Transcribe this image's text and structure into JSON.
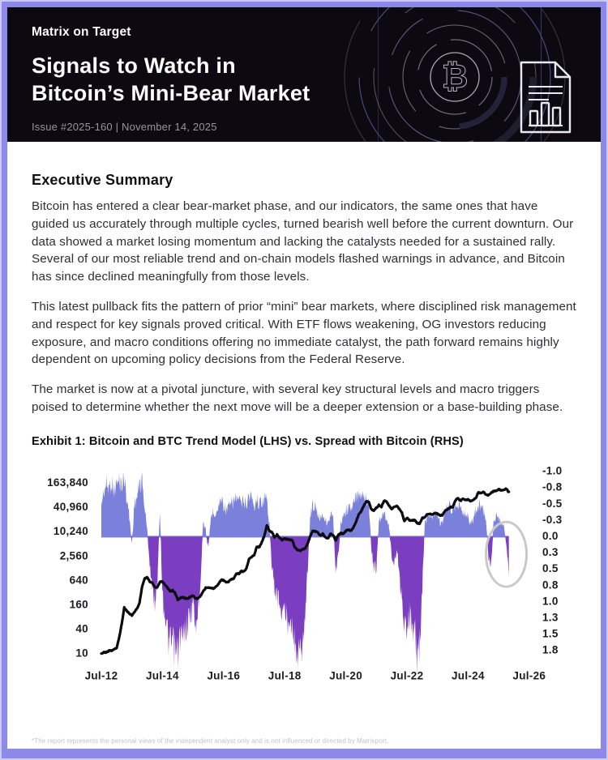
{
  "header": {
    "brand": "Matrix on Target",
    "title_line1": "Signals to Watch in",
    "title_line2": "Bitcoin’s Mini-Bear Market",
    "issue_line": "Issue #2025-160 | November 14, 2025",
    "icons": [
      "bitcoin-target-maze-icon",
      "report-document-chart-icon"
    ]
  },
  "summary": {
    "heading": "Executive Summary",
    "paragraphs": [
      "Bitcoin has entered a clear bear-market phase, and our indicators, the same ones that have guided us accurately through multiple cycles, turned bearish well before the current downturn. Our data showed a market losing momentum and lacking the catalysts needed for a sustained rally. Several of our most reliable trend and on-chain models flashed warnings in advance, and Bitcoin has since declined meaningfully from those levels.",
      "This latest pullback fits the pattern of prior “mini” bear markets, where disciplined risk management and respect for key signals proved critical. With ETF flows weakening, OG investors reducing exposure, and macro conditions offering no immediate catalyst, the path forward remains highly dependent on upcoming policy decisions from the Federal Reserve.",
      "The market is now at a pivotal juncture, with several key structural levels and macro triggers poised to determine whether the next move will be a deeper extension or a base-building phase."
    ]
  },
  "exhibit": {
    "title": "Exhibit 1: Bitcoin and BTC Trend Model (LHS) vs. Spread with Bitcoin (RHS)"
  },
  "footnote": "*The report represents the personal views of the independent analyst only and is not influenced or directed by Matrixport.",
  "colors": {
    "page_border": "#8d89e9",
    "header_bg": "#0c0a10",
    "spread_negative_fill": "#7b80da",
    "spread_positive_fill": "#7b3ec1",
    "price_line": "#0b0b10",
    "annotation_circle": "#c9c9c9",
    "tick_text": "#1b1b22"
  },
  "chart_data": {
    "type": "line+area",
    "title": "Exhibit 1: Bitcoin and BTC Trend Model (LHS) vs. Spread with Bitcoin (RHS)",
    "x_start_month": "2012-07",
    "x_step_months": 1,
    "x_tick_labels": [
      "Jul-12",
      "Jul-14",
      "Jul-16",
      "Jul-18",
      "Jul-20",
      "Jul-22",
      "Jul-24",
      "Jul-26"
    ],
    "x_tick_month_index": [
      0,
      24,
      48,
      72,
      96,
      120,
      144,
      168
    ],
    "lhs_axis": {
      "scale": "log4",
      "tick_values": [
        163840,
        40960,
        10240,
        2560,
        640,
        160,
        40,
        10
      ],
      "tick_labels": [
        "163,840",
        "40,960",
        "10,240",
        "2,560",
        "640",
        "160",
        "40",
        "10"
      ]
    },
    "rhs_axis": {
      "scale": "linear-inverted",
      "tick_values": [
        -1.0,
        -0.75,
        -0.5,
        -0.25,
        0.0,
        0.25,
        0.5,
        0.75,
        1.0,
        1.25,
        1.5,
        1.75
      ],
      "tick_labels": [
        "-1.0",
        "-0.8",
        "-0.5",
        "-0.3",
        "0.0",
        "0.3",
        "0.5",
        "0.8",
        "1.0",
        "1.3",
        "1.5",
        "1.8"
      ]
    },
    "grid": false,
    "legend": "none",
    "series": [
      {
        "name": "Bitcoin price (LHS, log scale)",
        "type": "line",
        "values": [
          10,
          11,
          11,
          12,
          12,
          13,
          14,
          25,
          55,
          140,
          115,
          100,
          90,
          110,
          130,
          185,
          450,
          730,
          780,
          620,
          560,
          450,
          440,
          590,
          620,
          500,
          430,
          350,
          370,
          320,
          220,
          240,
          250,
          235,
          235,
          260,
          280,
          230,
          235,
          270,
          350,
          430,
          430,
          420,
          415,
          450,
          530,
          670,
          660,
          580,
          610,
          700,
          730,
          950,
          960,
          1100,
          1080,
          1300,
          2200,
          2500,
          2700,
          4400,
          4300,
          5700,
          8200,
          15000,
          11000,
          10200,
          7500,
          8800,
          7500,
          6500,
          7000,
          6800,
          6600,
          6400,
          4200,
          3700,
          3500,
          3800,
          4000,
          5200,
          8000,
          11000,
          10500,
          10000,
          8300,
          9200,
          7500,
          7200,
          9300,
          8700,
          6400,
          8600,
          9500,
          9200,
          10900,
          11700,
          10800,
          13500,
          18000,
          28000,
          33000,
          45000,
          58000,
          57000,
          37000,
          35000,
          41000,
          47000,
          43000,
          61000,
          57000,
          46000,
          38000,
          43000,
          45000,
          38000,
          31000,
          19000,
          23000,
          20000,
          19400,
          20500,
          17000,
          16500,
          23000,
          23500,
          28000,
          29000,
          27000,
          30000,
          29200,
          26000,
          27000,
          34500,
          37700,
          42000,
          42500,
          61000,
          71000,
          60000,
          67500,
          62700,
          64600,
          59000,
          63300,
          70200,
          96400,
          93400,
          102000,
          84000,
          82500,
          94000,
          104000,
          107000,
          116000,
          109000,
          114000,
          122000,
          98000
        ]
      },
      {
        "name": "Spread with Bitcoin (RHS)",
        "type": "area",
        "values": [
          -0.5,
          -0.7,
          -0.8,
          -0.75,
          -0.85,
          -0.7,
          -0.8,
          -0.85,
          -0.8,
          -0.9,
          -0.6,
          -0.3,
          0.1,
          -0.5,
          -0.6,
          -0.8,
          -0.85,
          -0.45,
          -0.1,
          0.4,
          0.8,
          1.0,
          0.7,
          -0.45,
          0.9,
          1.2,
          1.5,
          1.7,
          1.6,
          1.8,
          1.8,
          1.5,
          1.6,
          1.4,
          1.3,
          1.2,
          1.0,
          1.4,
          1.1,
          0.6,
          -0.25,
          -0.1,
          0.2,
          -0.3,
          -0.4,
          -0.35,
          -0.45,
          -0.6,
          -0.5,
          -0.4,
          -0.45,
          -0.5,
          -0.55,
          -0.6,
          -0.55,
          -0.5,
          -0.55,
          -0.5,
          -0.65,
          -0.6,
          -0.45,
          -0.6,
          -0.5,
          -0.55,
          -0.6,
          -0.55,
          -0.2,
          0.5,
          0.8,
          0.9,
          1.0,
          1.2,
          1.1,
          1.3,
          1.2,
          1.3,
          1.7,
          1.8,
          1.8,
          1.6,
          1.2,
          0.5,
          -0.3,
          -0.5,
          -0.45,
          -0.35,
          -0.3,
          -0.35,
          -0.25,
          -0.2,
          -0.35,
          -0.3,
          0.6,
          0.3,
          -0.2,
          -0.3,
          -0.4,
          -0.45,
          -0.4,
          -0.5,
          -0.6,
          -0.65,
          -0.7,
          -0.65,
          -0.6,
          -0.55,
          0.2,
          0.45,
          0.5,
          -0.25,
          -0.3,
          -0.35,
          -0.3,
          -0.15,
          0.3,
          0.4,
          0.2,
          0.5,
          1.0,
          1.5,
          1.3,
          1.2,
          1.4,
          1.5,
          1.8,
          1.7,
          0.8,
          -0.2,
          -0.3,
          -0.35,
          -0.3,
          -0.4,
          -0.35,
          -0.2,
          -0.25,
          -0.4,
          -0.5,
          -0.45,
          -0.4,
          -0.5,
          -0.55,
          -0.45,
          -0.4,
          -0.35,
          -0.3,
          -0.2,
          -0.25,
          -0.4,
          -0.5,
          -0.45,
          -0.4,
          -0.3,
          0.3,
          0.45,
          -0.2,
          -0.3,
          -0.25,
          -0.2,
          -0.15,
          0.1,
          0.5
        ]
      }
    ],
    "annotation": {
      "shape": "ellipse",
      "x_month": "2025-10",
      "month_index": 159,
      "spread_center": 0.27
    }
  }
}
